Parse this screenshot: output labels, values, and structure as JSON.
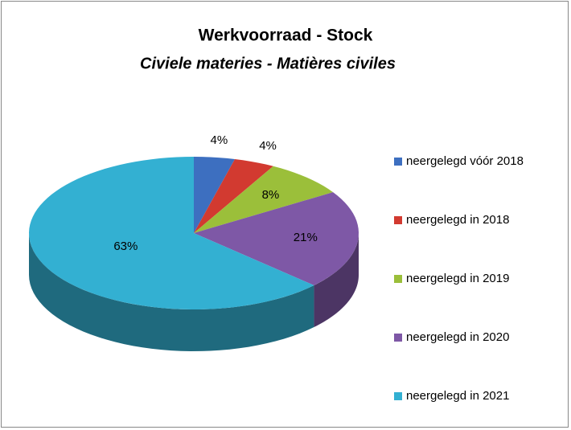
{
  "chart_data": {
    "type": "pie3d",
    "title": "Werkvoorraad - Stock",
    "subtitle": "Civiele materies - Matières civiles",
    "categories": [
      "neergelegd vóór 2018",
      "neergelegd in 2018",
      "neergelegd in 2019",
      "neergelegd in 2020",
      "neergelegd in 2021"
    ],
    "values": [
      4,
      4,
      8,
      21,
      63
    ],
    "value_labels": [
      "4%",
      "4%",
      "8%",
      "21%",
      "63%"
    ],
    "colors": [
      "#3d6fc0",
      "#d23a30",
      "#9bbf3a",
      "#7e58a6",
      "#33b0d2"
    ],
    "legend": "right"
  }
}
